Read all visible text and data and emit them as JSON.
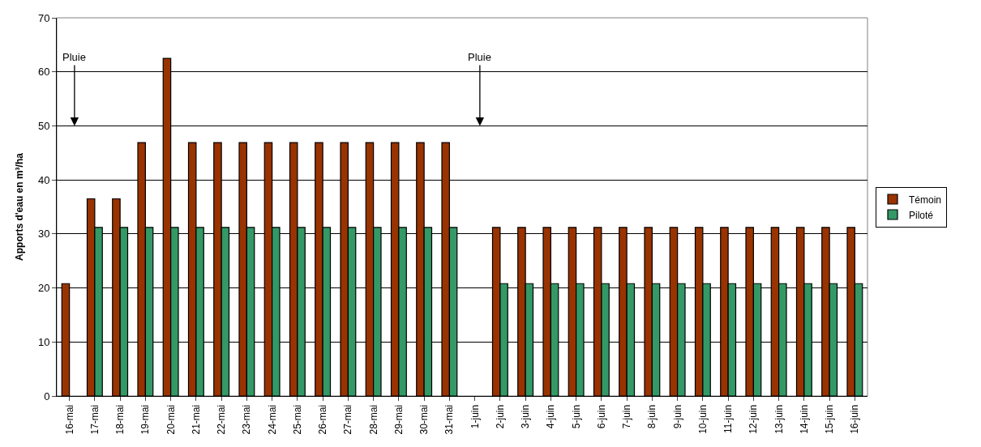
{
  "chart_data": {
    "type": "bar",
    "ylabel": "Apports d'eau en m³/ha",
    "categories": [
      "16-mai",
      "17-mai",
      "18-mai",
      "19-mai",
      "20-mai",
      "21-mai",
      "22-mai",
      "23-mai",
      "24-mai",
      "25-mai",
      "26-mai",
      "27-mai",
      "28-mai",
      "29-mai",
      "30-mai",
      "31-mai",
      "1-juin",
      "2-juin",
      "3-juin",
      "4-juin",
      "5-juin",
      "6-juin",
      "7-juin",
      "8-juin",
      "9-juin",
      "10-juin",
      "11-juin",
      "12-juin",
      "13-juin",
      "14-juin",
      "15-juin",
      "16-juin"
    ],
    "series": [
      {
        "name": "Témoin",
        "color": "#993300",
        "values": [
          20.8,
          36.5,
          36.5,
          46.9,
          62.5,
          46.9,
          46.9,
          46.9,
          46.9,
          46.9,
          46.9,
          46.9,
          46.9,
          46.9,
          46.9,
          46.9,
          null,
          31.2,
          31.2,
          31.2,
          31.2,
          31.2,
          31.2,
          31.2,
          31.2,
          31.2,
          31.2,
          31.2,
          31.2,
          31.2,
          31.2,
          31.2
        ]
      },
      {
        "name": "Piloté",
        "color": "#339966",
        "values": [
          null,
          31.2,
          31.2,
          31.2,
          31.2,
          31.2,
          31.2,
          31.2,
          31.2,
          31.2,
          31.2,
          31.2,
          31.2,
          31.2,
          31.2,
          31.2,
          null,
          20.8,
          20.8,
          20.8,
          20.8,
          20.8,
          20.8,
          20.8,
          20.8,
          20.8,
          20.8,
          20.8,
          20.8,
          20.8,
          20.8,
          20.8
        ]
      }
    ],
    "annotations": [
      "Pluie",
      "Pluie"
    ],
    "ylim": [
      0,
      70
    ],
    "yticks": [
      0,
      10,
      20,
      30,
      40,
      50,
      60,
      70
    ],
    "grid": "y",
    "legend": "right"
  }
}
